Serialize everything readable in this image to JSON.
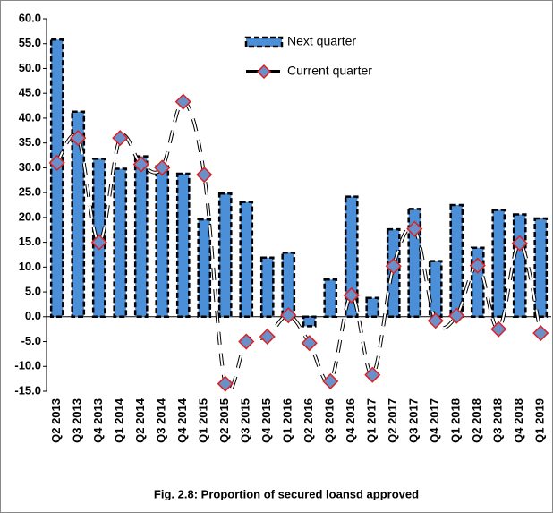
{
  "chart_data": {
    "type": "bar-line",
    "caption": "Fig. 2.8: Proportion of secured loansd approved",
    "categories": [
      "Q2 2013",
      "Q3 2013",
      "Q4 2013",
      "Q1 2014",
      "Q2 2014",
      "Q3 2014",
      "Q4 2014",
      "Q1 2015",
      "Q2 2015",
      "Q3 2015",
      "Q4 2015",
      "Q1 2016",
      "Q2 2016",
      "Q3 2016",
      "Q4 2016",
      "Q1 2017",
      "Q2 2017",
      "Q3 2017",
      "Q4 2017",
      "Q1 2018",
      "Q2 2018",
      "Q3 2018",
      "Q4 2018",
      "Q1 2019"
    ],
    "series": [
      {
        "name": "Next quarter",
        "type": "bar",
        "color": "#4a8fd8",
        "values": [
          55.8,
          41.3,
          31.8,
          29.8,
          32.3,
          30.3,
          28.8,
          19.6,
          24.8,
          23.1,
          11.9,
          12.9,
          -1.9,
          7.5,
          24.2,
          3.8,
          17.6,
          21.7,
          11.2,
          22.5,
          13.9,
          21.5,
          20.6,
          19.8
        ]
      },
      {
        "name": "Current quarter",
        "type": "line",
        "color": "#6b8fc8",
        "values": [
          31.0,
          36.0,
          15.0,
          36.0,
          30.7,
          30.0,
          43.3,
          28.6,
          -13.5,
          -5.0,
          -4.0,
          0.3,
          -5.3,
          -13.0,
          4.3,
          -11.7,
          10.2,
          17.7,
          -0.8,
          0.2,
          10.3,
          -2.5,
          14.8,
          -3.3
        ]
      }
    ],
    "ylim": [
      -15,
      60
    ],
    "yticks": [
      {
        "value": -15,
        "label": "-15.0"
      },
      {
        "value": -10,
        "label": "-10.0"
      },
      {
        "value": -5,
        "label": "-5.0"
      },
      {
        "value": 0,
        "label": "0.0"
      },
      {
        "value": 5,
        "label": "5.0"
      },
      {
        "value": 10,
        "label": "10.0"
      },
      {
        "value": 15,
        "label": "15.0"
      },
      {
        "value": 20,
        "label": "20.0"
      },
      {
        "value": 25,
        "label": "25.0"
      },
      {
        "value": 30,
        "label": "30.0"
      },
      {
        "value": 35,
        "label": "35.0"
      },
      {
        "value": 40,
        "label": "40.0"
      },
      {
        "value": 45,
        "label": "45.0"
      },
      {
        "value": 50,
        "label": "50.0"
      },
      {
        "value": 55,
        "label": "55.0"
      },
      {
        "value": 60,
        "label": "60.0"
      }
    ],
    "grid": false
  }
}
